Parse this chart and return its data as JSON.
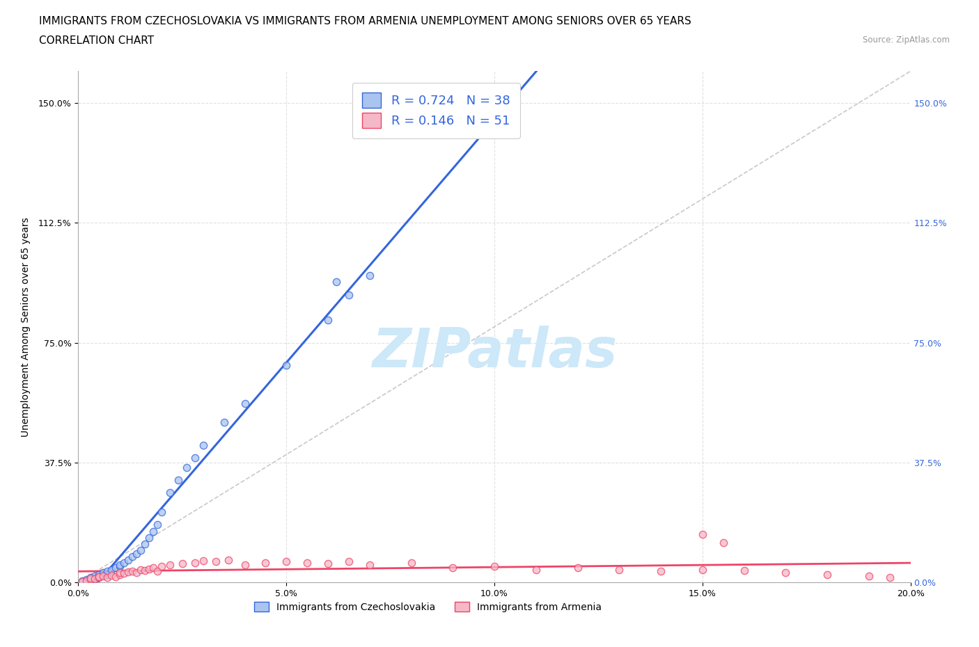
{
  "title_line1": "IMMIGRANTS FROM CZECHOSLOVAKIA VS IMMIGRANTS FROM ARMENIA UNEMPLOYMENT AMONG SENIORS OVER 65 YEARS",
  "title_line2": "CORRELATION CHART",
  "source": "Source: ZipAtlas.com",
  "ylabel": "Unemployment Among Seniors over 65 years",
  "xlim": [
    0.0,
    0.2
  ],
  "ylim": [
    0.0,
    1.6
  ],
  "xticks": [
    0.0,
    0.05,
    0.1,
    0.15,
    0.2
  ],
  "xtick_labels": [
    "0.0%",
    "5.0%",
    "10.0%",
    "15.0%",
    "20.0%"
  ],
  "ytick_labels_left": [
    "0.0%",
    "37.5%",
    "75.0%",
    "112.5%",
    "150.0%"
  ],
  "ytick_labels_right": [
    "0.0%",
    "37.5%",
    "75.0%",
    "112.5%",
    "150.0%"
  ],
  "yticks": [
    0.0,
    0.375,
    0.75,
    1.125,
    1.5
  ],
  "legend_entry1": "R = 0.724   N = 38",
  "legend_entry2": "R = 0.146   N = 51",
  "color_czech": "#aac4f0",
  "color_armenia": "#f5b8c8",
  "line_color_czech": "#3366dd",
  "line_color_armenia": "#ee4466",
  "diagonal_color": "#c8c8c8",
  "background_color": "#ffffff",
  "grid_color": "#dddddd",
  "watermark_color": "#cde8f8",
  "title_fontsize": 11,
  "label_fontsize": 10,
  "tick_fontsize": 9,
  "scatter_alpha": 0.75,
  "scatter_size": 55,
  "czech_x": [
    0.001,
    0.002,
    0.003,
    0.003,
    0.004,
    0.004,
    0.005,
    0.005,
    0.006,
    0.006,
    0.007,
    0.007,
    0.008,
    0.009,
    0.01,
    0.01,
    0.011,
    0.012,
    0.013,
    0.014,
    0.015,
    0.016,
    0.017,
    0.018,
    0.019,
    0.02,
    0.022,
    0.024,
    0.026,
    0.028,
    0.03,
    0.035,
    0.04,
    0.05,
    0.06,
    0.065,
    0.07,
    0.062
  ],
  "czech_y": [
    0.005,
    0.008,
    0.01,
    0.015,
    0.012,
    0.02,
    0.018,
    0.025,
    0.022,
    0.03,
    0.025,
    0.035,
    0.04,
    0.045,
    0.05,
    0.055,
    0.06,
    0.07,
    0.08,
    0.09,
    0.1,
    0.12,
    0.14,
    0.16,
    0.18,
    0.22,
    0.28,
    0.32,
    0.36,
    0.39,
    0.43,
    0.5,
    0.56,
    0.68,
    0.82,
    0.9,
    0.96,
    0.94
  ],
  "armenia_x": [
    0.001,
    0.002,
    0.003,
    0.003,
    0.004,
    0.005,
    0.005,
    0.006,
    0.007,
    0.008,
    0.009,
    0.01,
    0.01,
    0.011,
    0.012,
    0.013,
    0.014,
    0.015,
    0.016,
    0.017,
    0.018,
    0.019,
    0.02,
    0.022,
    0.025,
    0.028,
    0.03,
    0.033,
    0.036,
    0.04,
    0.045,
    0.05,
    0.055,
    0.06,
    0.065,
    0.07,
    0.08,
    0.09,
    0.1,
    0.11,
    0.12,
    0.13,
    0.14,
    0.15,
    0.16,
    0.17,
    0.18,
    0.19,
    0.195,
    0.15,
    0.155
  ],
  "armenia_y": [
    0.002,
    0.005,
    0.008,
    0.012,
    0.01,
    0.015,
    0.018,
    0.02,
    0.015,
    0.022,
    0.018,
    0.025,
    0.03,
    0.028,
    0.032,
    0.035,
    0.03,
    0.04,
    0.038,
    0.042,
    0.045,
    0.035,
    0.05,
    0.055,
    0.058,
    0.062,
    0.068,
    0.065,
    0.07,
    0.055,
    0.06,
    0.065,
    0.06,
    0.058,
    0.065,
    0.055,
    0.06,
    0.045,
    0.05,
    0.04,
    0.045,
    0.04,
    0.035,
    0.04,
    0.038,
    0.03,
    0.025,
    0.02,
    0.015,
    0.15,
    0.125
  ]
}
